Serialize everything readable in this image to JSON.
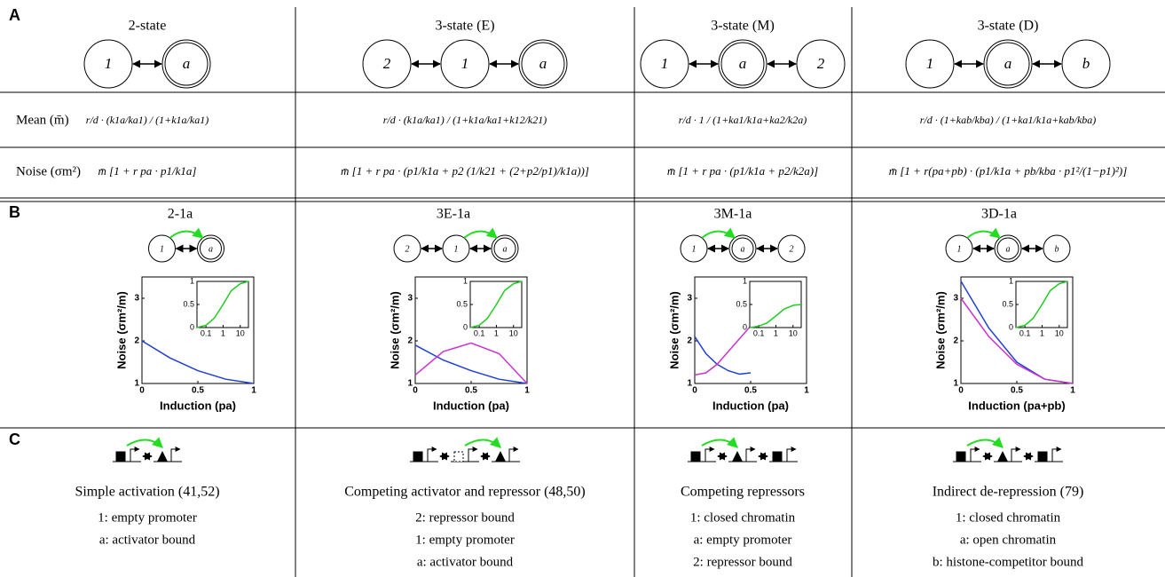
{
  "panels": {
    "a": "A",
    "b": "B",
    "c": "C"
  },
  "row_labels": {
    "mean": "Mean (m̄)",
    "noise": "Noise (σm²)"
  },
  "columns": [
    {
      "title": "2-state",
      "nodes": [
        "1",
        "a"
      ],
      "double_node": 1,
      "mean": "r/d · (k1a/ka1) / (1+k1a/ka1)",
      "noise": "m̄ [1 + r pa · p1/k1a]",
      "plot": {
        "type": "line",
        "title": "2-1a",
        "xlabel": "Induction (pa)",
        "ylabel": "Noise (σm²/m)",
        "xlim": [
          0,
          1
        ],
        "ylim": [
          1,
          3.5
        ],
        "xticks": [
          0,
          0.5,
          1
        ],
        "yticks": [
          1,
          2,
          3
        ],
        "series": [
          {
            "color": "#1f3fd6",
            "x": [
              0,
              0.25,
              0.5,
              0.75,
              1
            ],
            "values": [
              2,
              1.6,
              1.3,
              1.1,
              1
            ]
          }
        ],
        "inset": {
          "xscale": "log",
          "xlim": [
            0.03,
            30
          ],
          "ylim": [
            0,
            1
          ],
          "xticks": [
            0.1,
            1,
            10
          ],
          "yticks": [
            0,
            0.5,
            1
          ],
          "series": [
            {
              "color": "#22cc22",
              "x": [
                0.03,
                0.1,
                0.3,
                1,
                3,
                10,
                30
              ],
              "values": [
                0,
                0.05,
                0.2,
                0.5,
                0.8,
                0.95,
                1
              ]
            }
          ]
        }
      },
      "mechanism": "Simple activation (41,52)",
      "states": [
        "1: empty promoter",
        "a: activator bound"
      ]
    },
    {
      "title": "3-state (E)",
      "nodes": [
        "2",
        "1",
        "a"
      ],
      "double_node": 2,
      "mean": "r/d · (k1a/ka1) / (1+k1a/ka1+k12/k21)",
      "noise": "m̄ [1 + r pa · (p1/k1a + p2 (1/k21 + (2+p2/p1)/k1a))]",
      "plot": {
        "type": "line",
        "title": "3E-1a",
        "xlabel": "Induction (pa)",
        "ylabel": "Noise (σm²/m)",
        "xlim": [
          0,
          1
        ],
        "ylim": [
          1,
          3.5
        ],
        "xticks": [
          0,
          0.5,
          1
        ],
        "yticks": [
          1,
          2,
          3
        ],
        "series": [
          {
            "color": "#1f3fd6",
            "x": [
              0,
              0.25,
              0.5,
              0.75,
              1
            ],
            "values": [
              1.9,
              1.55,
              1.3,
              1.1,
              1
            ]
          },
          {
            "color": "#cc33cc",
            "x": [
              0,
              0.25,
              0.5,
              0.75,
              1
            ],
            "values": [
              1.2,
              1.75,
              1.95,
              1.7,
              1
            ]
          }
        ],
        "inset": {
          "xscale": "log",
          "xlim": [
            0.03,
            30
          ],
          "ylim": [
            0,
            1
          ],
          "xticks": [
            0.1,
            1,
            10
          ],
          "yticks": [
            0,
            0.5,
            1
          ],
          "series": [
            {
              "color": "#22cc22",
              "x": [
                0.03,
                0.1,
                0.3,
                1,
                3,
                10,
                30
              ],
              "values": [
                0,
                0.05,
                0.2,
                0.5,
                0.8,
                0.95,
                1
              ]
            }
          ]
        }
      },
      "mechanism": "Competing activator and repressor (48,50)",
      "states": [
        "2: repressor bound",
        "1: empty promoter",
        "a: activator bound"
      ]
    },
    {
      "title": "3-state (M)",
      "nodes": [
        "1",
        "a",
        "2"
      ],
      "double_node": 1,
      "mean": "r/d · 1 / (1+ka1/k1a+ka2/k2a)",
      "noise": "m̄ [1 + r pa · (p1/k1a + p2/k2a)]",
      "plot": {
        "type": "line",
        "title": "3M-1a",
        "xlabel": "Induction (pa)",
        "ylabel": "Noise (σm²/m)",
        "xlim": [
          0,
          1
        ],
        "ylim": [
          1,
          3.5
        ],
        "xticks": [
          0,
          0.5,
          1
        ],
        "yticks": [
          1,
          2,
          3
        ],
        "series": [
          {
            "color": "#1f3fd6",
            "x": [
              0,
              0.1,
              0.2,
              0.3,
              0.4,
              0.5
            ],
            "values": [
              2.1,
              1.7,
              1.45,
              1.3,
              1.22,
              1.25
            ]
          },
          {
            "color": "#cc33cc",
            "x": [
              0,
              0.1,
              0.2,
              0.3,
              0.4,
              0.5
            ],
            "values": [
              1.2,
              1.25,
              1.45,
              1.75,
              2.05,
              2.35
            ]
          }
        ],
        "inset": {
          "xscale": "log",
          "xlim": [
            0.03,
            30
          ],
          "ylim": [
            0,
            1
          ],
          "xticks": [
            0.1,
            1,
            10
          ],
          "yticks": [
            0,
            0.5,
            1
          ],
          "series": [
            {
              "color": "#22cc22",
              "x": [
                0.03,
                0.1,
                0.3,
                1,
                3,
                10,
                30
              ],
              "values": [
                0,
                0.03,
                0.1,
                0.25,
                0.4,
                0.48,
                0.5
              ]
            }
          ]
        }
      },
      "mechanism": "Competing repressors",
      "states": [
        "1: closed chromatin",
        "a: empty promoter",
        "2: repressor bound"
      ]
    },
    {
      "title": "3-state (D)",
      "nodes": [
        "1",
        "a",
        "b"
      ],
      "double_node": 1,
      "mean": "r/d · (1+kab/kba) / (1+ka1/k1a+kab/kba)",
      "noise": "m̄ [1 + r(pa+pb) · (p1/k1a + pb/kba · p1²/(1−p1)²)]",
      "plot": {
        "type": "line",
        "title": "3D-1a",
        "xlabel": "Induction (pa+pb)",
        "ylabel": "Noise (σm²/m)",
        "xlim": [
          0,
          1
        ],
        "ylim": [
          1,
          3.5
        ],
        "xticks": [
          0,
          0.5,
          1
        ],
        "yticks": [
          1,
          2,
          3
        ],
        "series": [
          {
            "color": "#1f3fd6",
            "x": [
              0,
              0.25,
              0.5,
              0.75,
              1
            ],
            "values": [
              3.4,
              2.3,
              1.5,
              1.1,
              1
            ]
          },
          {
            "color": "#cc33cc",
            "x": [
              0,
              0.25,
              0.5,
              0.75,
              1
            ],
            "values": [
              3,
              2.1,
              1.45,
              1.1,
              1
            ]
          }
        ],
        "inset": {
          "xscale": "log",
          "xlim": [
            0.03,
            30
          ],
          "ylim": [
            0,
            1
          ],
          "xticks": [
            0.1,
            1,
            10
          ],
          "yticks": [
            0,
            0.5,
            1
          ],
          "series": [
            {
              "color": "#22cc22",
              "x": [
                0.03,
                0.1,
                0.3,
                1,
                3,
                10,
                30
              ],
              "values": [
                0,
                0.05,
                0.2,
                0.5,
                0.8,
                0.95,
                1
              ]
            }
          ]
        }
      },
      "mechanism": "Indirect de-repression (79)",
      "states": [
        "1: closed chromatin",
        "a: open chromatin",
        "b: histone-competitor bound"
      ]
    }
  ]
}
